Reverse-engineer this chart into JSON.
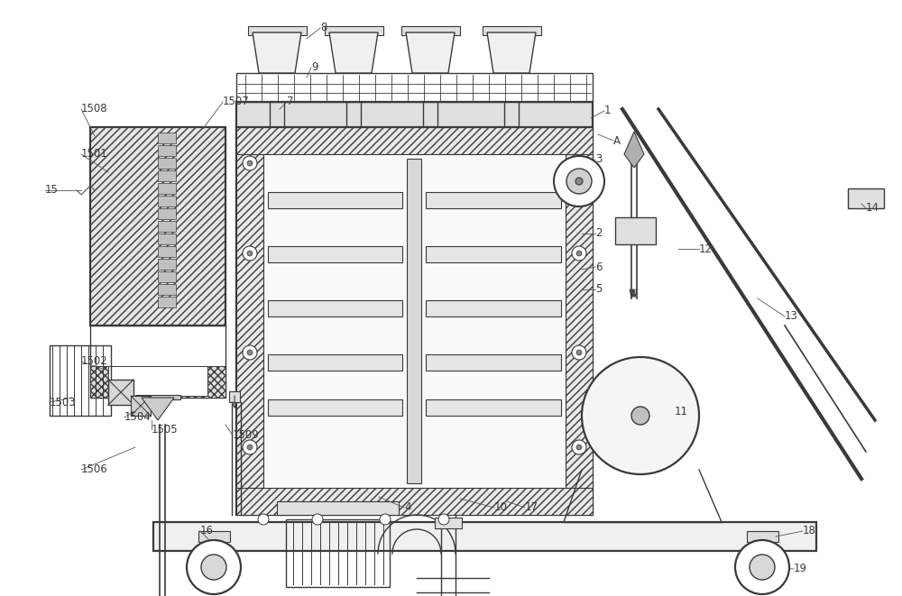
{
  "bg_color": "#ffffff",
  "lc": "#3a3a3a",
  "lw": 1.0,
  "lw2": 1.6,
  "fs": 8.5,
  "figsize": [
    10.0,
    6.61
  ],
  "dpi": 100
}
